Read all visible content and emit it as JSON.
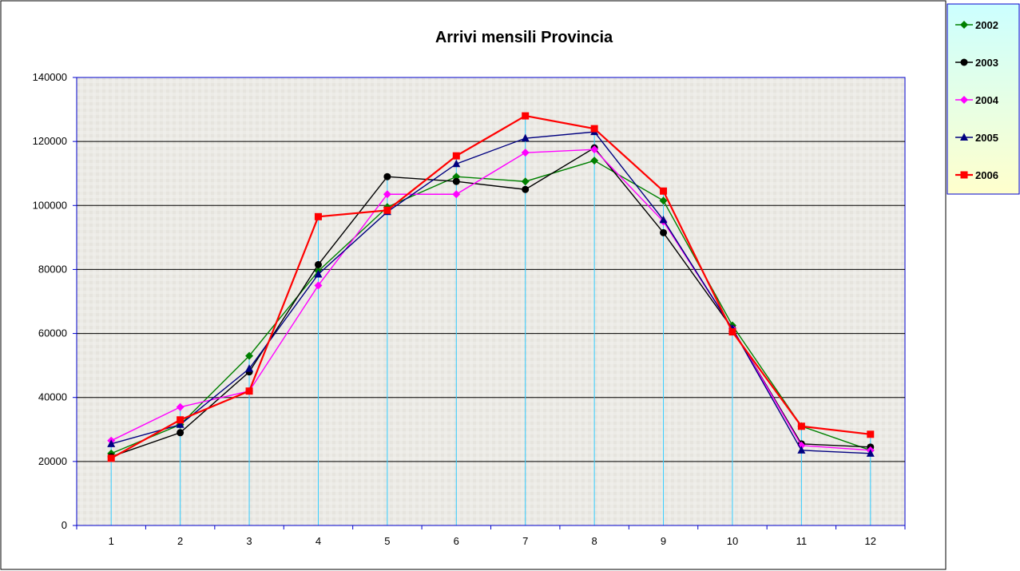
{
  "chart_data": {
    "type": "line",
    "title": "Arrivi mensili Provincia",
    "xlabel": "",
    "ylabel": "",
    "categories": [
      "1",
      "2",
      "3",
      "4",
      "5",
      "6",
      "7",
      "8",
      "9",
      "10",
      "11",
      "12"
    ],
    "ylim": [
      0,
      140000
    ],
    "yticks": [
      "0",
      "20000",
      "40000",
      "60000",
      "80000",
      "100000",
      "120000",
      "140000"
    ],
    "grid": "horizontal",
    "drop_lines": true,
    "legend_position": "top-right",
    "series": [
      {
        "name": "2002",
        "color": "#008000",
        "marker": "diamond",
        "values": [
          22500,
          31500,
          53000,
          79500,
          99500,
          109000,
          107500,
          114000,
          101500,
          62500,
          31000,
          23500
        ]
      },
      {
        "name": "2003",
        "color": "#000000",
        "marker": "circle",
        "values": [
          21500,
          29000,
          48000,
          81500,
          109000,
          107500,
          105000,
          118000,
          91500,
          61500,
          25500,
          24500
        ]
      },
      {
        "name": "2004",
        "color": "#ff00ff",
        "marker": "diamond",
        "values": [
          26500,
          37000,
          42000,
          75000,
          103500,
          103500,
          116500,
          117500,
          95000,
          61500,
          25000,
          23500
        ]
      },
      {
        "name": "2005",
        "color": "#000080",
        "marker": "triangle",
        "values": [
          25500,
          31500,
          49000,
          78500,
          98000,
          113000,
          121000,
          123000,
          95500,
          61500,
          23500,
          22500
        ]
      },
      {
        "name": "2006",
        "color": "#ff0000",
        "marker": "square",
        "values": [
          21000,
          33000,
          42000,
          96500,
          98500,
          115500,
          128000,
          124000,
          104500,
          60500,
          31000,
          28500
        ]
      }
    ]
  }
}
